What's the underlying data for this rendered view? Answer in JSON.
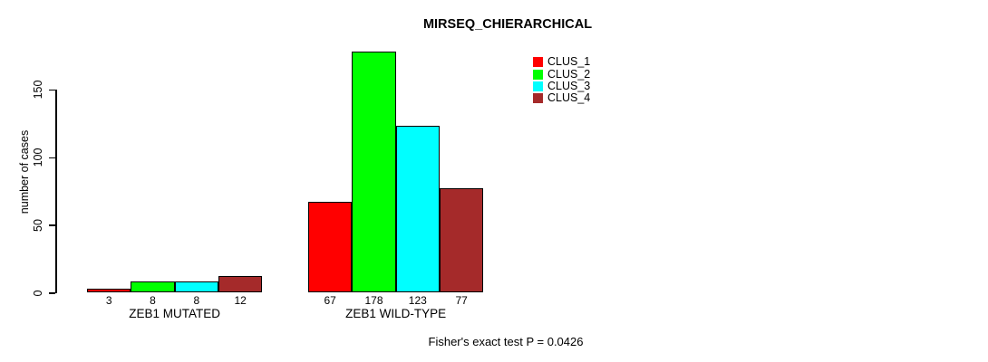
{
  "chart_data": {
    "type": "bar",
    "title": "MIRSEQ_CHIERARCHICAL",
    "ylabel": "number of cases",
    "xlabel": "",
    "ylim": [
      0,
      178
    ],
    "yticks": [
      0,
      50,
      100,
      150
    ],
    "grid": false,
    "legend_position": "top-right",
    "categories": [
      "ZEB1 MUTATED",
      "ZEB1 WILD-TYPE"
    ],
    "series": [
      {
        "name": "CLUS_1",
        "color": "#ff0000",
        "values": [
          3,
          67
        ]
      },
      {
        "name": "CLUS_2",
        "color": "#00ff00",
        "values": [
          8,
          178
        ]
      },
      {
        "name": "CLUS_3",
        "color": "#00ffff",
        "values": [
          8,
          123
        ]
      },
      {
        "name": "CLUS_4",
        "color": "#a52a2a",
        "values": [
          12,
          77
        ]
      }
    ],
    "bar_value_labels": [
      [
        3,
        8,
        8,
        12
      ],
      [
        67,
        178,
        123,
        77
      ]
    ],
    "annotation": "Fisher's exact test P = 0.0426"
  }
}
